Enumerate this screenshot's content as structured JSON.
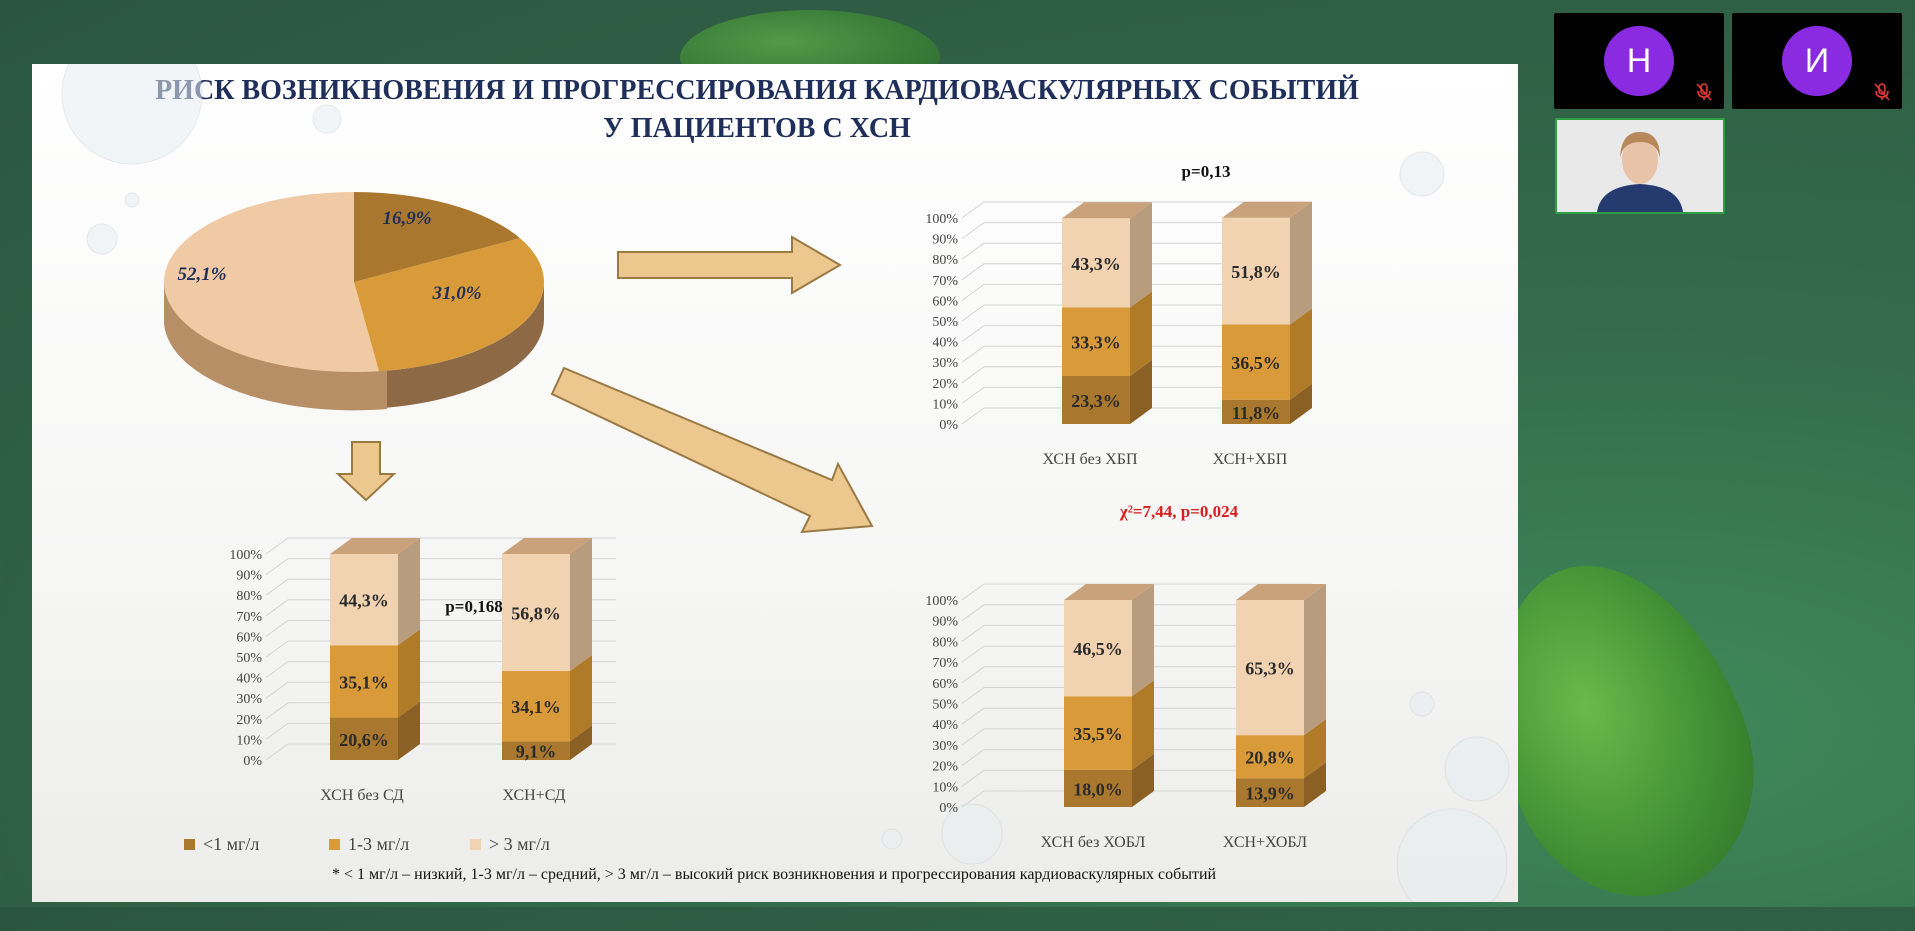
{
  "slide": {
    "title_line1": "РИСК ВОЗНИКНОВЕНИЯ И ПРОГРЕССИРОВАНИЯ КАРДИОВАСКУЛЯРНЫХ СОБЫТИЙ",
    "title_line2": "У ПАЦИЕНТОВ С ХСН",
    "footnote": "* < 1 мг/л – низкий, 1-3 мг/л – средний,  > 3 мг/л – высокий риск возникновения и прогрессирования кардиоваскулярных событий",
    "legend": [
      {
        "label": "<1 мг/л",
        "color": "#a9782e"
      },
      {
        "label": "1-3 мг/л",
        "color": "#d99b3a"
      },
      {
        "label": "> 3 мг/л",
        "color": "#f1d3b2"
      }
    ],
    "colors": {
      "low": "#a9782e",
      "mid": "#d99b3a",
      "high": "#f1d3b2",
      "arrow": "#ecc78e",
      "title": "#1f2f5a",
      "red": "#d91c1c"
    }
  },
  "participants": [
    {
      "initial": "Н",
      "muted": true
    },
    {
      "initial": "И",
      "muted": true
    }
  ],
  "chart_data": [
    {
      "type": "pie",
      "labels": [
        "<1 мг/л",
        "1-3 мг/л",
        "> 3 мг/л"
      ],
      "values": [
        16.9,
        31.0,
        52.1
      ],
      "value_labels": [
        "16,9%",
        "31,0%",
        "52,1%"
      ]
    },
    {
      "type": "bar",
      "stacked": true,
      "categories": [
        "ХСН без СД",
        "ХСН+СД"
      ],
      "series": [
        {
          "name": "<1 мг/л",
          "values": [
            20.6,
            9.1
          ],
          "labels": [
            "20,6%",
            "9,1%"
          ]
        },
        {
          "name": "1-3 мг/л",
          "values": [
            35.1,
            34.1
          ],
          "labels": [
            "35,1%",
            "34,1%"
          ]
        },
        {
          "name": "> 3 мг/л",
          "values": [
            44.3,
            56.8
          ],
          "labels": [
            "44,3%",
            "56,8%"
          ]
        }
      ],
      "ylim": [
        0,
        100
      ],
      "yticks": [
        "0%",
        "10%",
        "20%",
        "30%",
        "40%",
        "50%",
        "60%",
        "70%",
        "80%",
        "90%",
        "100%"
      ],
      "annotation": "p=0,168"
    },
    {
      "type": "bar",
      "stacked": true,
      "categories": [
        "ХСН без ХБП",
        "ХСН+ХБП"
      ],
      "series": [
        {
          "name": "<1 мг/л",
          "values": [
            23.3,
            11.8
          ],
          "labels": [
            "23,3%",
            "11,8%"
          ]
        },
        {
          "name": "1-3 мг/л",
          "values": [
            33.3,
            36.5
          ],
          "labels": [
            "33,3%",
            "36,5%"
          ]
        },
        {
          "name": "> 3 мг/л",
          "values": [
            43.3,
            51.8
          ],
          "labels": [
            "43,3%",
            "51,8%"
          ]
        }
      ],
      "ylim": [
        0,
        100
      ],
      "yticks": [
        "0%",
        "10%",
        "20%",
        "30%",
        "40%",
        "50%",
        "60%",
        "70%",
        "80%",
        "90%",
        "100%"
      ],
      "annotation": "p=0,13"
    },
    {
      "type": "bar",
      "stacked": true,
      "categories": [
        "ХСН без ХОБЛ",
        "ХСН+ХОБЛ"
      ],
      "series": [
        {
          "name": "<1 мг/л",
          "values": [
            18.0,
            13.9
          ],
          "labels": [
            "18,0%",
            "13,9%"
          ]
        },
        {
          "name": "1-3 мг/л",
          "values": [
            35.5,
            20.8
          ],
          "labels": [
            "35,5%",
            "20,8%"
          ]
        },
        {
          "name": "> 3 мг/л",
          "values": [
            46.5,
            65.3
          ],
          "labels": [
            "46,5%",
            "65,3%"
          ]
        }
      ],
      "ylim": [
        0,
        100
      ],
      "yticks": [
        "0%",
        "10%",
        "20%",
        "30%",
        "40%",
        "50%",
        "60%",
        "70%",
        "80%",
        "90%",
        "100%"
      ],
      "annotation": "χ²=7,44, p=0,024"
    }
  ]
}
